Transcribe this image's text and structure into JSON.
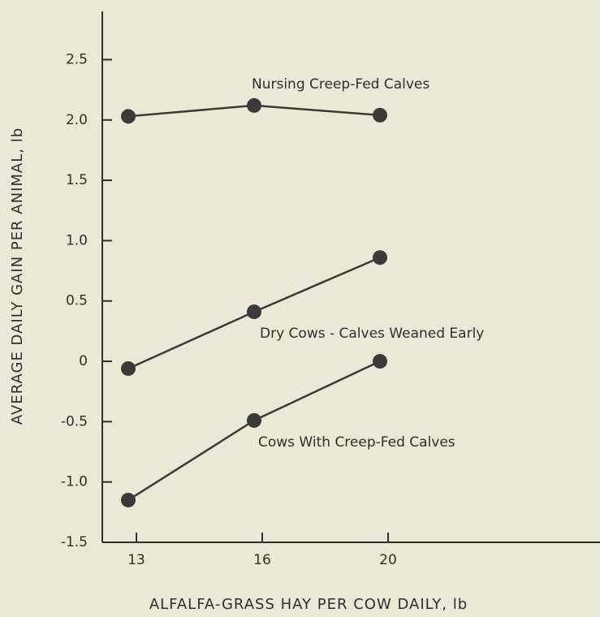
{
  "chart_data": {
    "type": "line",
    "x_label": "ALFALFA-GRASS HAY PER COW DAILY, lb",
    "y_label": "AVERAGE DAILY GAIN PER ANIMAL, lb",
    "categories": [
      "13",
      "16",
      "20"
    ],
    "series": [
      {
        "name": "Nursing Creep-Fed Calves",
        "color": "#3a3a3a",
        "values": [
          2.03,
          2.12,
          2.04
        ]
      },
      {
        "name": "Dry Cows - Calves Weaned Early",
        "color": "#3a3a3a",
        "values": [
          -0.06,
          0.41,
          0.86
        ]
      },
      {
        "name": "Cows With Creep-Fed Calves",
        "color": "#3a3a3a",
        "values": [
          -1.15,
          -0.49,
          0
        ]
      }
    ],
    "ylim": [
      -1.5,
      2.9
    ],
    "yticks": [
      2.5,
      {
        "value": 2,
        "label": "2.0"
      },
      1.5,
      {
        "value": 1,
        "label": "1.0"
      },
      0.5,
      0,
      -0.5,
      {
        "value": -1,
        "label": "-1.0"
      },
      -1.5
    ]
  }
}
